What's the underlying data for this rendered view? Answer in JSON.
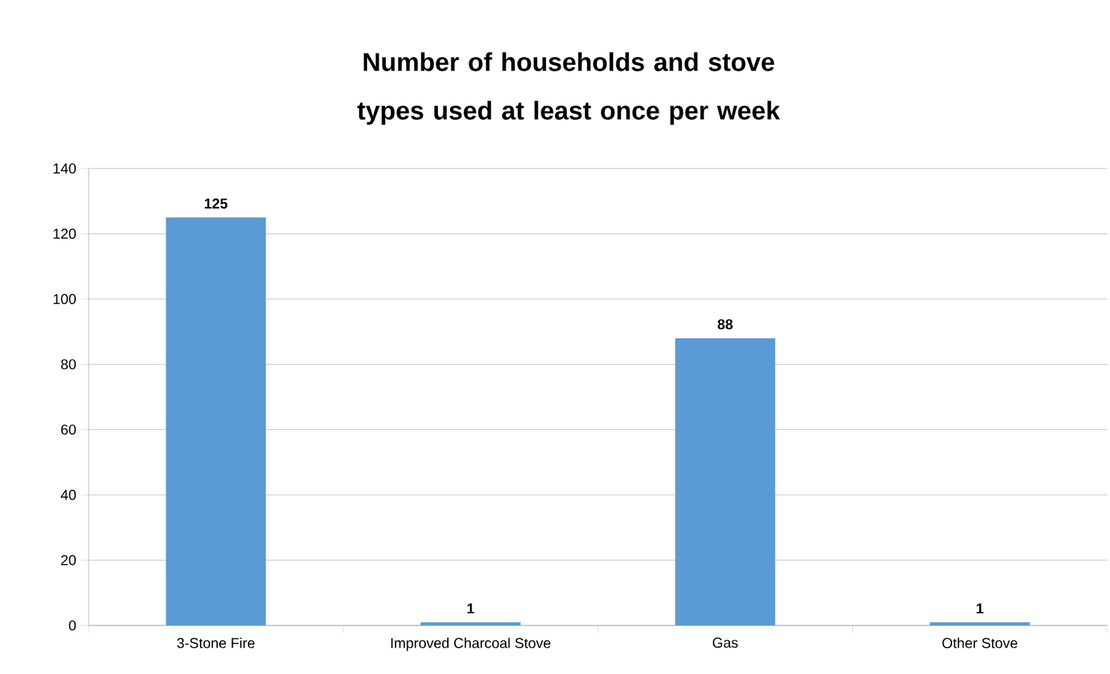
{
  "chart_data": {
    "type": "bar",
    "title": "Number of households and stove types used at least once per week",
    "categories": [
      "3-Stone Fire",
      "Improved Charcoal Stove",
      "Gas",
      "Other Stove"
    ],
    "values": [
      125,
      1,
      88,
      1
    ],
    "color": "#5b9bd5",
    "ylim": [
      0,
      140
    ],
    "yticks": [
      0,
      20,
      40,
      60,
      80,
      100,
      120,
      140
    ],
    "grid": "y",
    "data_labels": true
  }
}
